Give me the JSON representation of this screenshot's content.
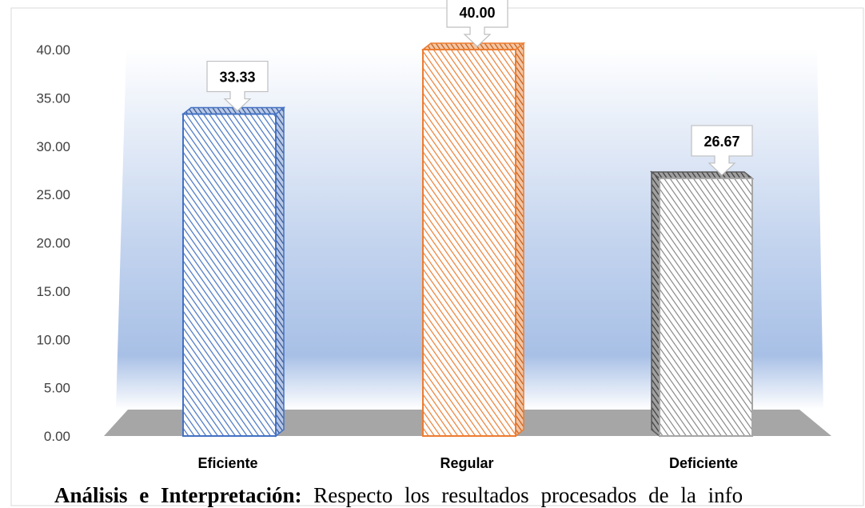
{
  "chart_data": {
    "type": "bar",
    "categories": [
      "Eficiente",
      "Regular",
      "Deficiente"
    ],
    "values": [
      33.33,
      40.0,
      26.67
    ],
    "data_labels": [
      "33.33",
      "40.00",
      "26.67"
    ],
    "y_ticks": [
      "0.00",
      "5.00",
      "10.00",
      "15.00",
      "20.00",
      "25.00",
      "30.00",
      "35.00",
      "40.00"
    ],
    "ylim": [
      0,
      40
    ],
    "title": "",
    "xlabel": "",
    "ylabel": "",
    "grid": false,
    "colors": [
      "#4472c4",
      "#ed7d31",
      "#808080"
    ]
  },
  "caption": {
    "heading": "Análisis e Interpretación:",
    "text": "Respecto los resultados procesados de la info"
  }
}
